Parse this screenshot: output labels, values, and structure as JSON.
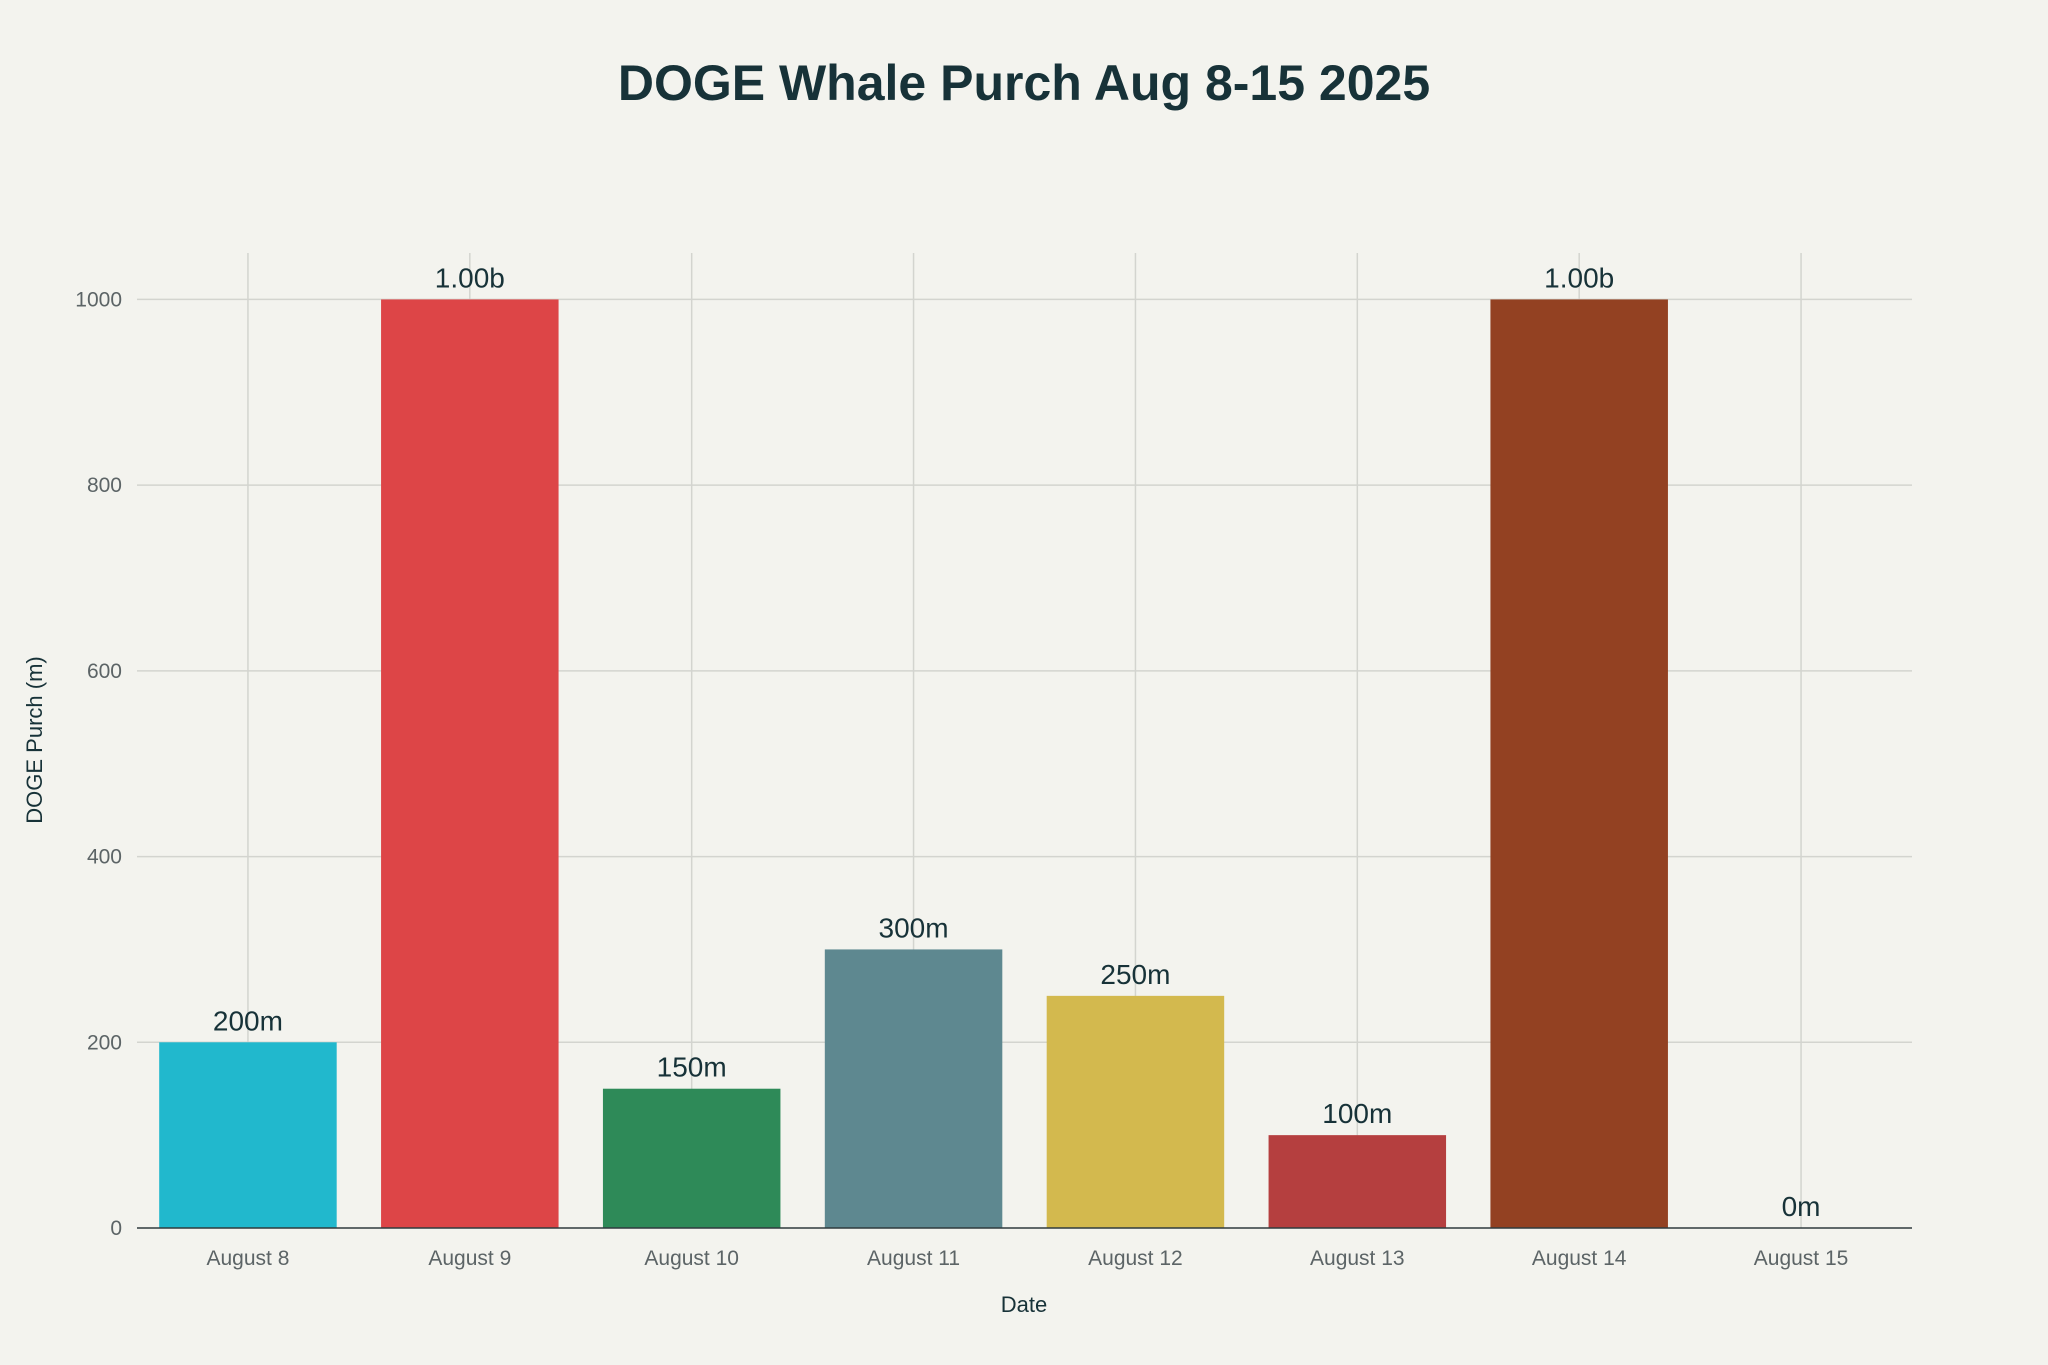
{
  "chart_data": {
    "type": "bar",
    "title": "DOGE Whale Purch Aug 8-15 2025",
    "xlabel": "Date",
    "ylabel": "DOGE Purch (m)",
    "categories": [
      "August 8",
      "August 9",
      "August 10",
      "August 11",
      "August 12",
      "August 13",
      "August 14",
      "August 15"
    ],
    "values": [
      200,
      1000,
      150,
      300,
      250,
      100,
      1000,
      0
    ],
    "data_labels": [
      "200m",
      "1.00b",
      "150m",
      "300m",
      "250m",
      "100m",
      "1.00b",
      "0m"
    ],
    "colors": [
      "#21b8cd",
      "#dd4547",
      "#2e8a58",
      "#5e8890",
      "#d3b94e",
      "#b53f3f",
      "#934122",
      "#5e8890"
    ],
    "ylim": [
      0,
      1050
    ],
    "yticks": [
      0,
      200,
      400,
      600,
      800,
      1000
    ],
    "grid": true,
    "legend": "none"
  }
}
